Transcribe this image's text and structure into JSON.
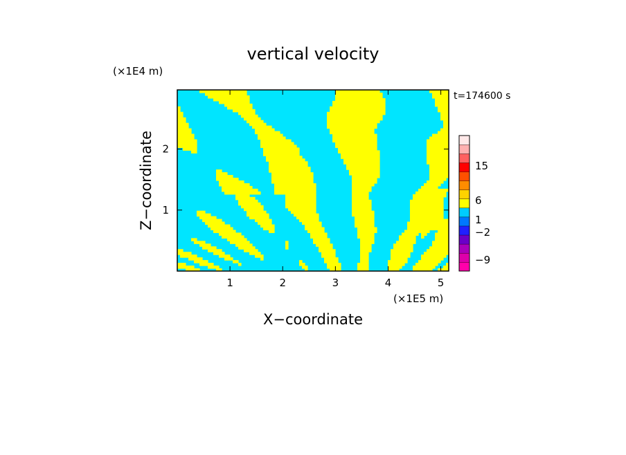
{
  "chart_data": {
    "type": "heatmap",
    "title": "vertical velocity",
    "xlabel": "X−coordinate",
    "ylabel": "Z−coordinate",
    "x_unit": "(×1E5 m)",
    "y_unit": "(×1E4 m)",
    "time_label": "t=174600 s",
    "xlim": [
      0,
      5.15
    ],
    "ylim": [
      0,
      2.97
    ],
    "x_ticks": [
      1,
      2,
      3,
      4,
      5
    ],
    "y_ticks": [
      1,
      2
    ],
    "field_colors": {
      "positive_small": "#ffff00",
      "negative_small": "#00e5ff"
    },
    "colorbar": {
      "tick_labels": [
        "15",
        "6",
        "1",
        "−2",
        "−9"
      ],
      "tick_levels": [
        15,
        6,
        1,
        -2,
        -9
      ],
      "bins": [
        {
          "color": "#ff00aa"
        },
        {
          "color": "#dd00aa"
        },
        {
          "color": "#aa00bb"
        },
        {
          "color": "#6a00c8"
        },
        {
          "color": "#2020ff"
        },
        {
          "color": "#0077ff"
        },
        {
          "color": "#00ccff"
        },
        {
          "color": "#ffff00"
        },
        {
          "color": "#ffd200"
        },
        {
          "color": "#ff8c00"
        },
        {
          "color": "#ff5000"
        },
        {
          "color": "#ff0000"
        },
        {
          "color": "#ff6060"
        },
        {
          "color": "#ffb0b0"
        },
        {
          "color": "#ffe8e8"
        }
      ]
    }
  }
}
